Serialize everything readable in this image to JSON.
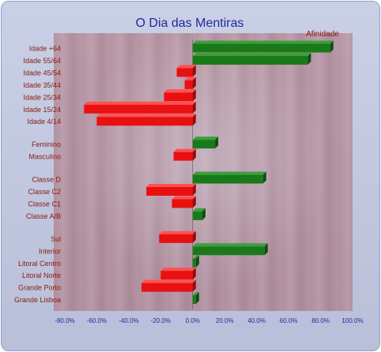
{
  "chart_data": {
    "type": "bar",
    "orientation": "horizontal",
    "title": "O Dia das Mentiras",
    "legend": "Afinidade",
    "categories": [
      "Idade +64",
      "Idade 55/64",
      "Idade 45/54",
      "Idade 35/44",
      "Idade 25/34",
      "Idade 15/24",
      "Idade 4/14",
      "Feminino",
      "Masculino",
      "Classe D",
      "Classe C2",
      "Classe C1",
      "Classe A/B",
      "Sul",
      "Interior",
      "Litoral Centro",
      "Litoral Norte",
      "Grande Porto",
      "Grande Lisboa"
    ],
    "groups": [
      7,
      2,
      4,
      6
    ],
    "values": [
      86,
      72,
      -10,
      -5,
      -18,
      -68,
      -60,
      14,
      -12,
      44,
      -29,
      -13,
      6,
      -21,
      45,
      2,
      -20,
      -32,
      2
    ],
    "xlim": [
      -80,
      100
    ],
    "x_ticks": [
      "-80.0%",
      "-60.0%",
      "-40.0%",
      "-20.0%",
      "0.0%",
      "20.0%",
      "40.0%",
      "60.0%",
      "80.0%",
      "100.0%"
    ],
    "colors": {
      "positive": "#1a7a1a",
      "negative": "#e81010",
      "title": "#1e2a9a",
      "labels": "#8a1a10"
    }
  }
}
